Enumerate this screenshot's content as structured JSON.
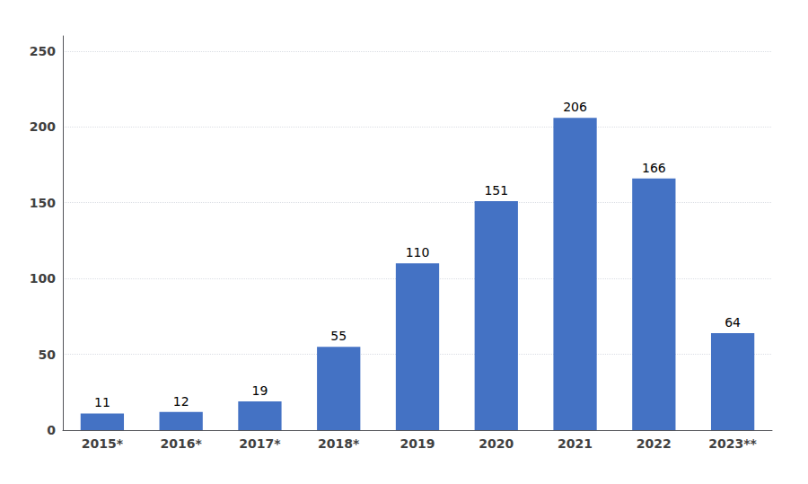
{
  "chart_data": {
    "type": "bar",
    "categories": [
      "2015*",
      "2016*",
      "2017*",
      "2018*",
      "2019",
      "2020",
      "2021",
      "2022",
      "2023**"
    ],
    "values": [
      11,
      12,
      19,
      55,
      110,
      151,
      206,
      166,
      64
    ],
    "color": "#4472C4",
    "ylim": [
      0,
      260
    ],
    "yticks": [
      0,
      50,
      100,
      150,
      200,
      250
    ],
    "grid": true,
    "data_labels": true
  }
}
